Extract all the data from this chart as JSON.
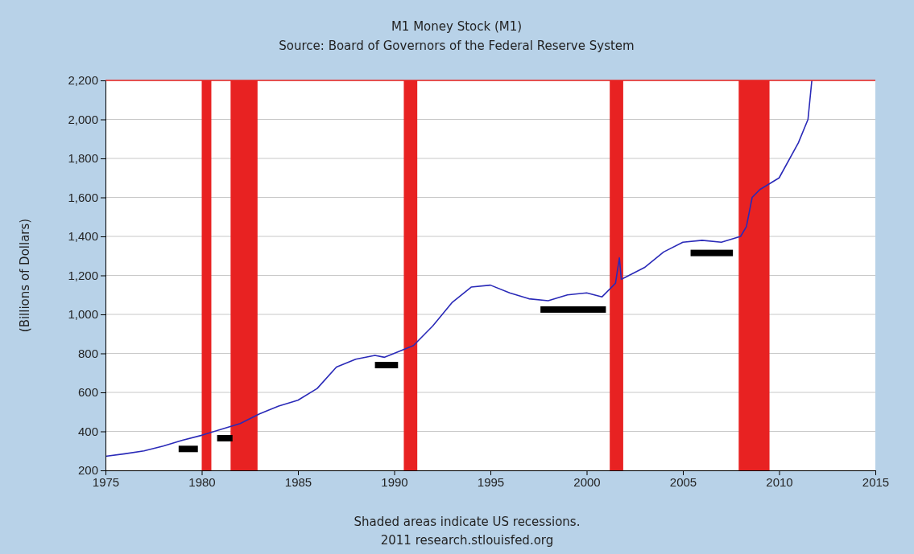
{
  "chart_data": {
    "type": "line",
    "title": "M1 Money Stock (M1)",
    "subtitle": "Source: Board of Governors of the Federal Reserve System",
    "ylabel": "(Billions of Dollars)",
    "x": [
      1975,
      1976,
      1977,
      1978,
      1979,
      1980,
      1981,
      1982,
      1983,
      1984,
      1985,
      1986,
      1987,
      1988,
      1989,
      1989.5,
      1990,
      1991,
      1992,
      1993,
      1994,
      1995,
      1996,
      1997,
      1998,
      1999,
      2000,
      2000.8,
      2001.5,
      2001.7,
      2001.8,
      2002,
      2003,
      2004,
      2005,
      2006,
      2007,
      2008,
      2008.3,
      2008.6,
      2009,
      2010,
      2011,
      2011.5,
      2011.7
    ],
    "series": [
      {
        "color": "#2a2ab8",
        "values": [
          272,
          285,
          300,
          325,
          355,
          380,
          410,
          440,
          490,
          530,
          560,
          620,
          730,
          770,
          790,
          780,
          800,
          840,
          940,
          1060,
          1140,
          1150,
          1110,
          1080,
          1070,
          1100,
          1110,
          1090,
          1160,
          1290,
          1180,
          1190,
          1240,
          1320,
          1370,
          1380,
          1370,
          1400,
          1450,
          1600,
          1640,
          1700,
          1880,
          2000,
          2200
        ]
      }
    ],
    "xlim": [
      1975,
      2015
    ],
    "xticks": [
      1975,
      1980,
      1985,
      1990,
      1995,
      2000,
      2005,
      2010,
      2015
    ],
    "ylim": [
      200,
      2200
    ],
    "yticks": [
      {
        "value": 200,
        "label": "200"
      },
      {
        "value": 400,
        "label": "400"
      },
      {
        "value": 600,
        "label": "600"
      },
      {
        "value": 800,
        "label": "800"
      },
      {
        "value": 1000,
        "label": "1,000"
      },
      {
        "value": 1200,
        "label": "1,200"
      },
      {
        "value": 1400,
        "label": "1,400"
      },
      {
        "value": 1600,
        "label": "1,600"
      },
      {
        "value": 1800,
        "label": "1,800"
      },
      {
        "value": 2000,
        "label": "2,000"
      },
      {
        "value": 2200,
        "label": "2,200"
      }
    ],
    "grid": "y",
    "bands": [
      {
        "axis": "x",
        "from": 1980,
        "to": 1980.5,
        "color": "#e82222"
      },
      {
        "axis": "x",
        "from": 1981.5,
        "to": 1982.9,
        "color": "#e82222"
      },
      {
        "axis": "x",
        "from": 1990.5,
        "to": 1991.2,
        "color": "#e82222"
      },
      {
        "axis": "x",
        "from": 2001.2,
        "to": 2001.9,
        "color": "#e82222"
      },
      {
        "axis": "x",
        "from": 2007.9,
        "to": 2009.5,
        "color": "#e82222"
      }
    ],
    "annotations": [
      "Shaded areas indicate US recessions.",
      "2011 research.stlouisfed.org"
    ]
  }
}
